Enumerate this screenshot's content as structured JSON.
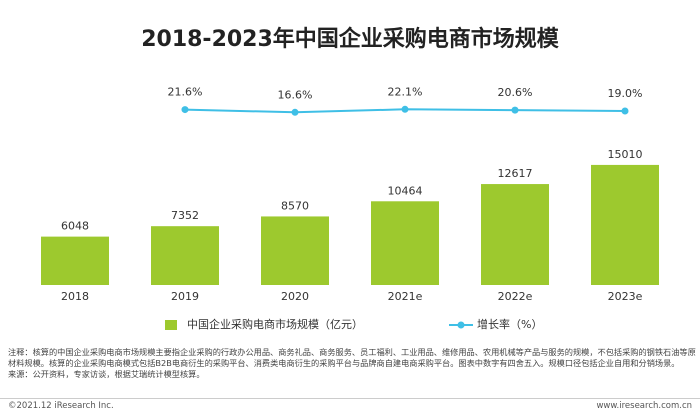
{
  "chart_data": {
    "type": "bar_line",
    "title": "2018-2023年中国企业采购电商市场规模",
    "categories": [
      "2018",
      "2019",
      "2020",
      "2021e",
      "2022e",
      "2023e"
    ],
    "series": [
      {
        "name": "中国企业采购电商市场规模（亿元）",
        "type": "bar",
        "color": "#9dc92e",
        "values": [
          6048,
          7352,
          8570,
          10464,
          12617,
          15010
        ]
      },
      {
        "name": "增长率（%）",
        "type": "line",
        "axis": "y2",
        "color": "#3fbfe6",
        "values": [
          null,
          21.6,
          16.6,
          22.1,
          20.6,
          19.0
        ],
        "value_labels": [
          null,
          "21.6%",
          "16.6%",
          "22.1%",
          "20.6%",
          "19.0%"
        ]
      }
    ],
    "ylim": [
      0,
      18000
    ],
    "y2lim": [
      -300,
      140
    ],
    "legend": "bottom"
  },
  "note": "注释：核算的中国企业采购电商市场规模主要指企业采购的行政办公用品、商务礼品、商务服务、员工福利、工业用品、维修用品、农用机械等产品与服务的规模，不包括采购的钢铁石油等原材料规模。核算的企业采购电商模式包括B2B电商衍生的采购平台、消费类电商衍生的采购平台与品牌商自建电商采购平台。图表中数字有四舍五入。规模口径包括企业自用和分销场景。",
  "source": "来源：公开资料，专家访谈，根据艾瑞统计模型核算。",
  "footer": {
    "copyright": "©2021.12 iResearch Inc.",
    "website": "www.iresearch.com.cn"
  }
}
